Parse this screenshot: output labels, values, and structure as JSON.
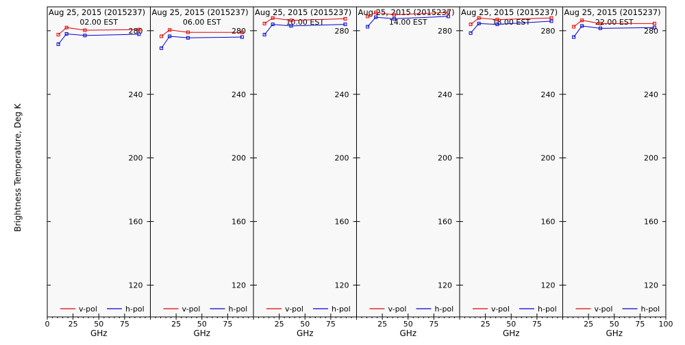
{
  "chart_data": {
    "type": "line",
    "ylabel": "Brightness Temperature, Deg K",
    "xlabel": "GHz",
    "ylim": [
      100,
      295
    ],
    "xlim": [
      0,
      100
    ],
    "y_ticks": [
      120,
      160,
      200,
      240,
      280
    ],
    "x_ticks": [
      0,
      25,
      50,
      75,
      100
    ],
    "grid": false,
    "legend_placement": "bottom",
    "colors": {
      "v-pol": "#e00000",
      "h-pol": "#0000cc",
      "background": "#f8f8f8"
    },
    "panels": [
      {
        "date_label": "Aug 25, 2015 (2015237)",
        "time_label": "02.00 EST",
        "x": [
          10.7,
          18.7,
          36.5,
          89.0
        ],
        "series": [
          {
            "name": "v-pol",
            "values": [
              277.5,
              282,
              280.3,
              280.7
            ]
          },
          {
            "name": "h-pol",
            "values": [
              271.5,
              278,
              277,
              277.8
            ]
          }
        ]
      },
      {
        "date_label": "Aug 25, 2015 (2015237)",
        "time_label": "06.00 EST",
        "x": [
          10.7,
          18.7,
          36.5,
          89.0
        ],
        "series": [
          {
            "name": "v-pol",
            "values": [
              276.5,
              280.5,
              279,
              279
            ]
          },
          {
            "name": "h-pol",
            "values": [
              269,
              276.5,
              275.5,
              276
            ]
          }
        ]
      },
      {
        "date_label": "Aug 25, 2015 (2015237)",
        "time_label": "10.00 EST",
        "x": [
          10.7,
          18.7,
          36.5,
          89.0
        ],
        "series": [
          {
            "name": "v-pol",
            "values": [
              284.5,
              288,
              286.5,
              287.5
            ]
          },
          {
            "name": "h-pol",
            "values": [
              277.5,
              284,
              283,
              284
            ]
          }
        ]
      },
      {
        "date_label": "Aug 25, 2015 (2015237)",
        "time_label": "14.00 EST",
        "x": [
          10.7,
          18.7,
          36.5,
          89.0
        ],
        "series": [
          {
            "name": "v-pol",
            "values": [
              289,
              291.5,
              290,
              291.5
            ]
          },
          {
            "name": "h-pol",
            "values": [
              282.5,
              288.5,
              287.5,
              289
            ]
          }
        ]
      },
      {
        "date_label": "Aug 25, 2015 (2015237)",
        "time_label": "18.00 EST",
        "x": [
          10.7,
          18.7,
          36.5,
          89.0
        ],
        "series": [
          {
            "name": "v-pol",
            "values": [
              284,
              288,
              287,
              288
            ]
          },
          {
            "name": "h-pol",
            "values": [
              278.5,
              284.5,
              284,
              286
            ]
          }
        ]
      },
      {
        "date_label": "Aug 25, 2015 (2015237)",
        "time_label": "22.00 EST",
        "x": [
          10.7,
          18.7,
          36.5,
          89.0
        ],
        "series": [
          {
            "name": "v-pol",
            "values": [
              282.5,
              286.5,
              284.5,
              284.5
            ]
          },
          {
            "name": "h-pol",
            "values": [
              276,
              283,
              281.5,
              282
            ]
          }
        ]
      }
    ]
  }
}
